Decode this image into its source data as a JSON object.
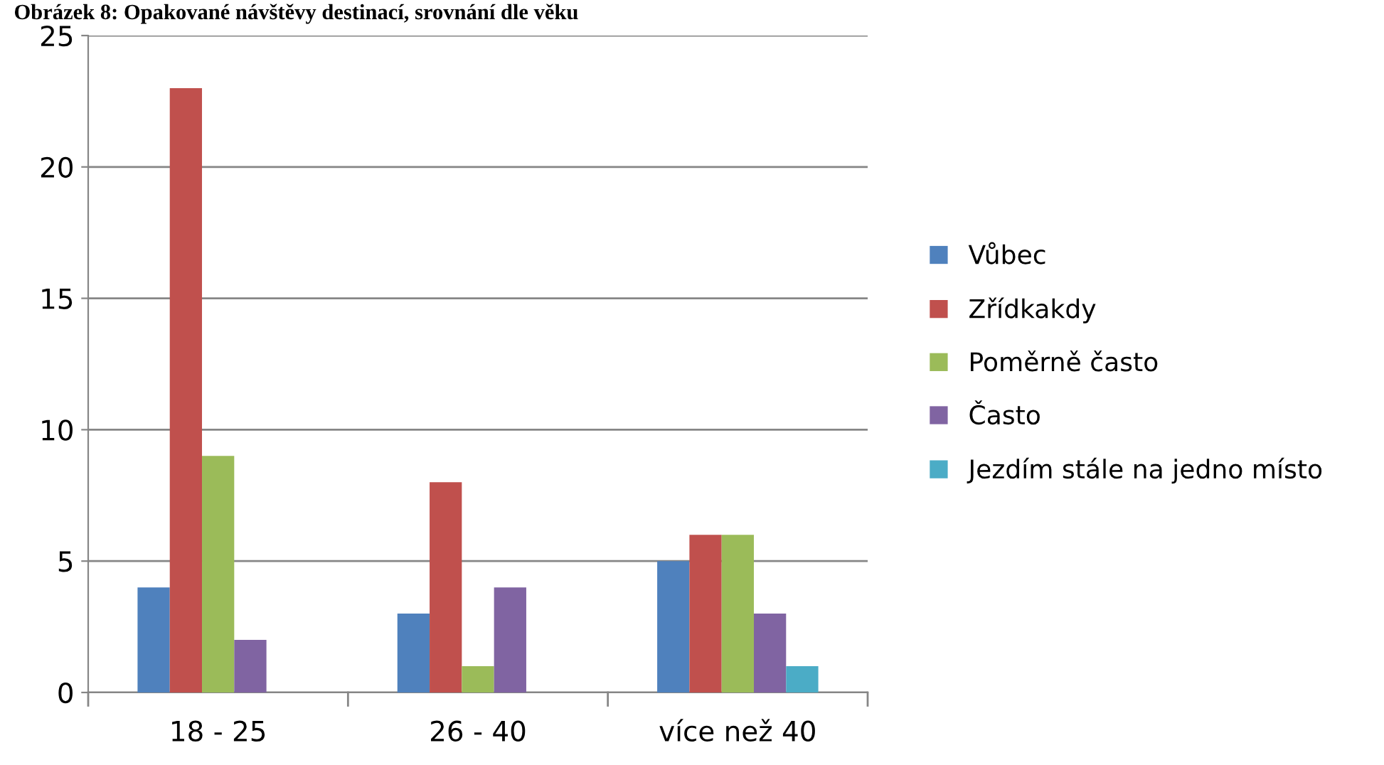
{
  "chart_data": {
    "type": "bar",
    "title": "Obrázek 8: Opakované návštěvy destinací, srovnání dle věku",
    "categories": [
      "18 - 25",
      "26 - 40",
      "více než 40"
    ],
    "series": [
      {
        "name": "Vůbec",
        "color": "#4f81bd",
        "values": [
          4,
          3,
          5
        ]
      },
      {
        "name": "Zřídkakdy",
        "color": "#c0504d",
        "values": [
          23,
          8,
          6
        ]
      },
      {
        "name": "Poměrně často",
        "color": "#9bbb59",
        "values": [
          9,
          1,
          6
        ]
      },
      {
        "name": "Často",
        "color": "#8064a2",
        "values": [
          2,
          4,
          3
        ]
      },
      {
        "name": "Jezdím stále na jedno místo",
        "color": "#4bacc6",
        "values": [
          0,
          0,
          1
        ]
      }
    ],
    "ylim": [
      0,
      25
    ],
    "yticks": [
      0,
      5,
      10,
      15,
      20,
      25
    ],
    "grid": "y",
    "legend": "right"
  }
}
